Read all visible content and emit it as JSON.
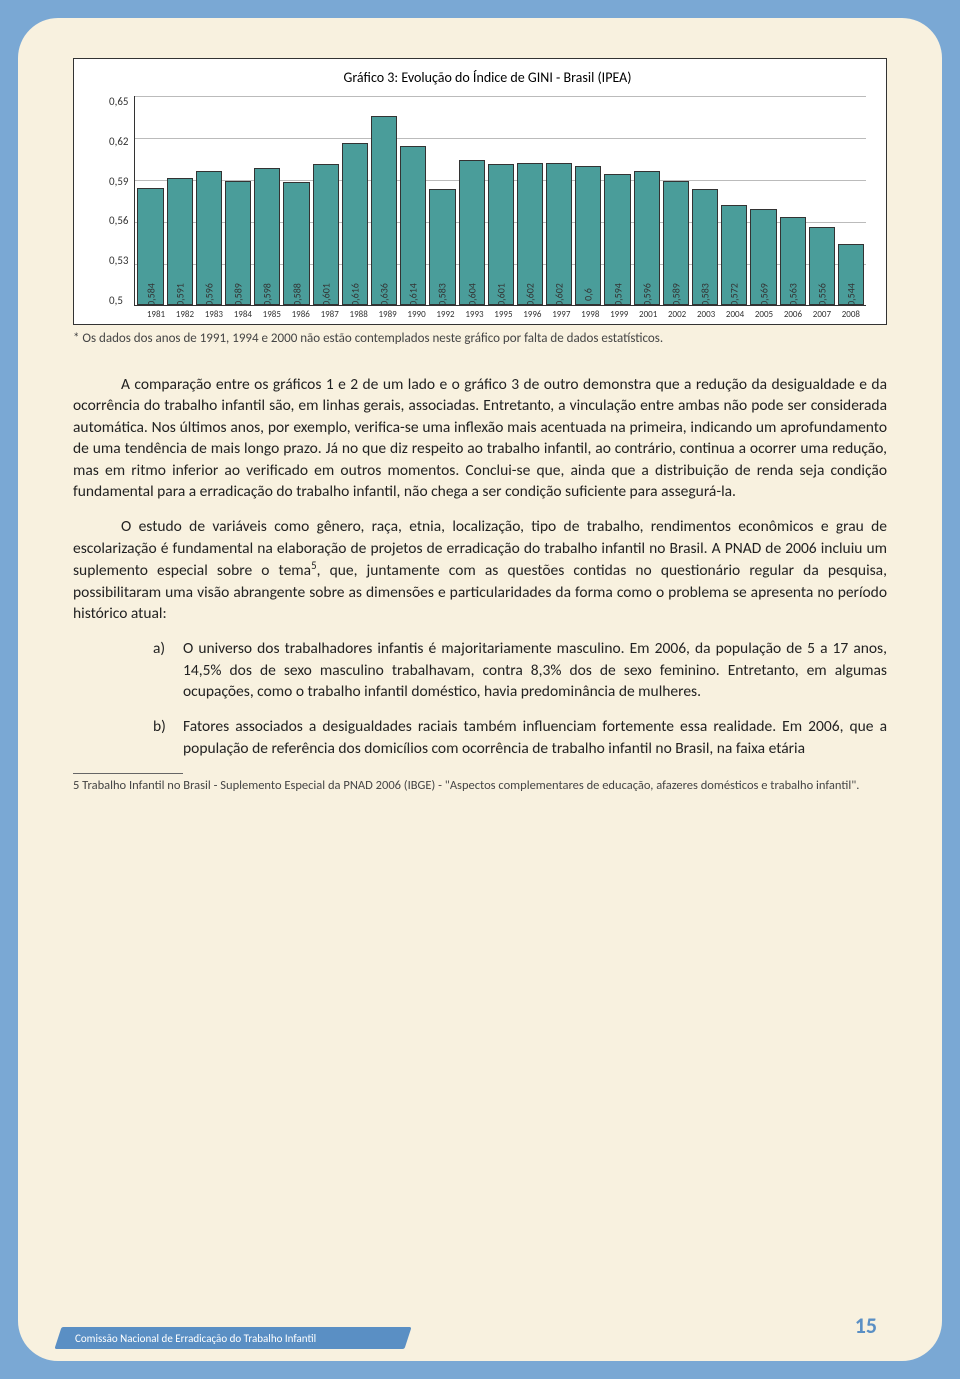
{
  "chart": {
    "type": "bar",
    "title": "Gráfico 3: Evolução do Índice de GINI - Brasil (IPEA)",
    "ylim": [
      0.5,
      0.65
    ],
    "yticks": [
      "0,65",
      "0,62",
      "0,59",
      "0,56",
      "0,53",
      "0,5"
    ],
    "bar_color": "#4a9d9a",
    "bar_border": "#333333",
    "grid_color": "#bbbbbb",
    "note": "* Os dados dos anos de 1991, 1994 e 2000 não estão contemplados neste gráfico por falta de dados estatísticos.",
    "data": [
      {
        "year": "1981",
        "value": 0.584,
        "label": "0,584"
      },
      {
        "year": "1982",
        "value": 0.591,
        "label": "0,591"
      },
      {
        "year": "1983",
        "value": 0.596,
        "label": "0,596"
      },
      {
        "year": "1984",
        "value": 0.589,
        "label": "0,589"
      },
      {
        "year": "1985",
        "value": 0.598,
        "label": "0,598"
      },
      {
        "year": "1986",
        "value": 0.588,
        "label": "0,588"
      },
      {
        "year": "1987",
        "value": 0.601,
        "label": "0,601"
      },
      {
        "year": "1988",
        "value": 0.616,
        "label": "0,616"
      },
      {
        "year": "1989",
        "value": 0.636,
        "label": "0,636"
      },
      {
        "year": "1990",
        "value": 0.614,
        "label": "0,614"
      },
      {
        "year": "1992",
        "value": 0.583,
        "label": "0,583"
      },
      {
        "year": "1993",
        "value": 0.604,
        "label": "0,604"
      },
      {
        "year": "1995",
        "value": 0.601,
        "label": "0,601"
      },
      {
        "year": "1996",
        "value": 0.602,
        "label": "0,602"
      },
      {
        "year": "1997",
        "value": 0.602,
        "label": "0,602"
      },
      {
        "year": "1998",
        "value": 0.6,
        "label": "0,6"
      },
      {
        "year": "1999",
        "value": 0.594,
        "label": "0,594"
      },
      {
        "year": "2001",
        "value": 0.596,
        "label": "0,596"
      },
      {
        "year": "2002",
        "value": 0.589,
        "label": "0,589"
      },
      {
        "year": "2003",
        "value": 0.583,
        "label": "0,583"
      },
      {
        "year": "2004",
        "value": 0.572,
        "label": "0,572"
      },
      {
        "year": "2005",
        "value": 0.569,
        "label": "0,569"
      },
      {
        "year": "2006",
        "value": 0.563,
        "label": "0,563"
      },
      {
        "year": "2007",
        "value": 0.556,
        "label": "0,556"
      },
      {
        "year": "2008",
        "value": 0.544,
        "label": "0,544"
      }
    ]
  },
  "para1": "A comparação entre os gráficos 1 e 2 de um lado e o gráfico 3 de outro demonstra que a redução da desigualdade e da ocorrência do trabalho infantil são, em linhas gerais, associadas. Entretanto, a vinculação entre ambas não pode ser considerada automática. Nos últimos anos, por exemplo, verifica-se uma inflexão mais acentuada na primeira, indicando um aprofundamento de uma tendência de mais longo prazo. Já no que diz respeito ao trabalho infantil, ao contrário, continua a ocorrer uma redução, mas em ritmo inferior ao verificado em outros momentos. Conclui-se que, ainda que a distribuição de renda seja condição fundamental para a erradicação do trabalho infantil, não chega a ser condição suficiente para assegurá-la.",
  "para2a": "O estudo de variáveis como gênero, raça, etnia, localização, tipo de trabalho, rendimentos econômicos e grau de escolarização é fundamental na elaboração de projetos de erradicação do trabalho infantil no Brasil. A PNAD de 2006 incluiu um suplemento especial sobre o tema",
  "para2b": ", que, juntamente com as questões contidas no questionário regular da pesquisa, possibilitaram uma visão abrangente sobre as dimensões e particularidades da forma como o problema se apresenta no período histórico atual:",
  "item_a_marker": "a)",
  "item_a": "O universo dos trabalhadores infantis é majoritariamente masculino. Em 2006, da população de 5 a 17 anos, 14,5% dos de sexo masculino trabalhavam, contra 8,3% dos de sexo feminino. Entretanto, em algumas ocupações, como o trabalho infantil doméstico, havia predominância de mulheres.",
  "item_b_marker": "b)",
  "item_b": "Fatores associados a desigualdades raciais também influenciam fortemente essa realidade. Em 2006, que a população de referência dos domicílios com ocorrência de trabalho infantil no Brasil, na faixa etária",
  "footnote_num": "5",
  "footnote": "5 Trabalho Infantil no Brasil - Suplemento Especial da PNAD 2006 (IBGE) - \"Aspectos complementares de educação, afazeres domésticos e trabalho infantil\".",
  "footer_text": "Comissão Nacional de Erradicação do Trabalho Infantil",
  "page_num": "15"
}
